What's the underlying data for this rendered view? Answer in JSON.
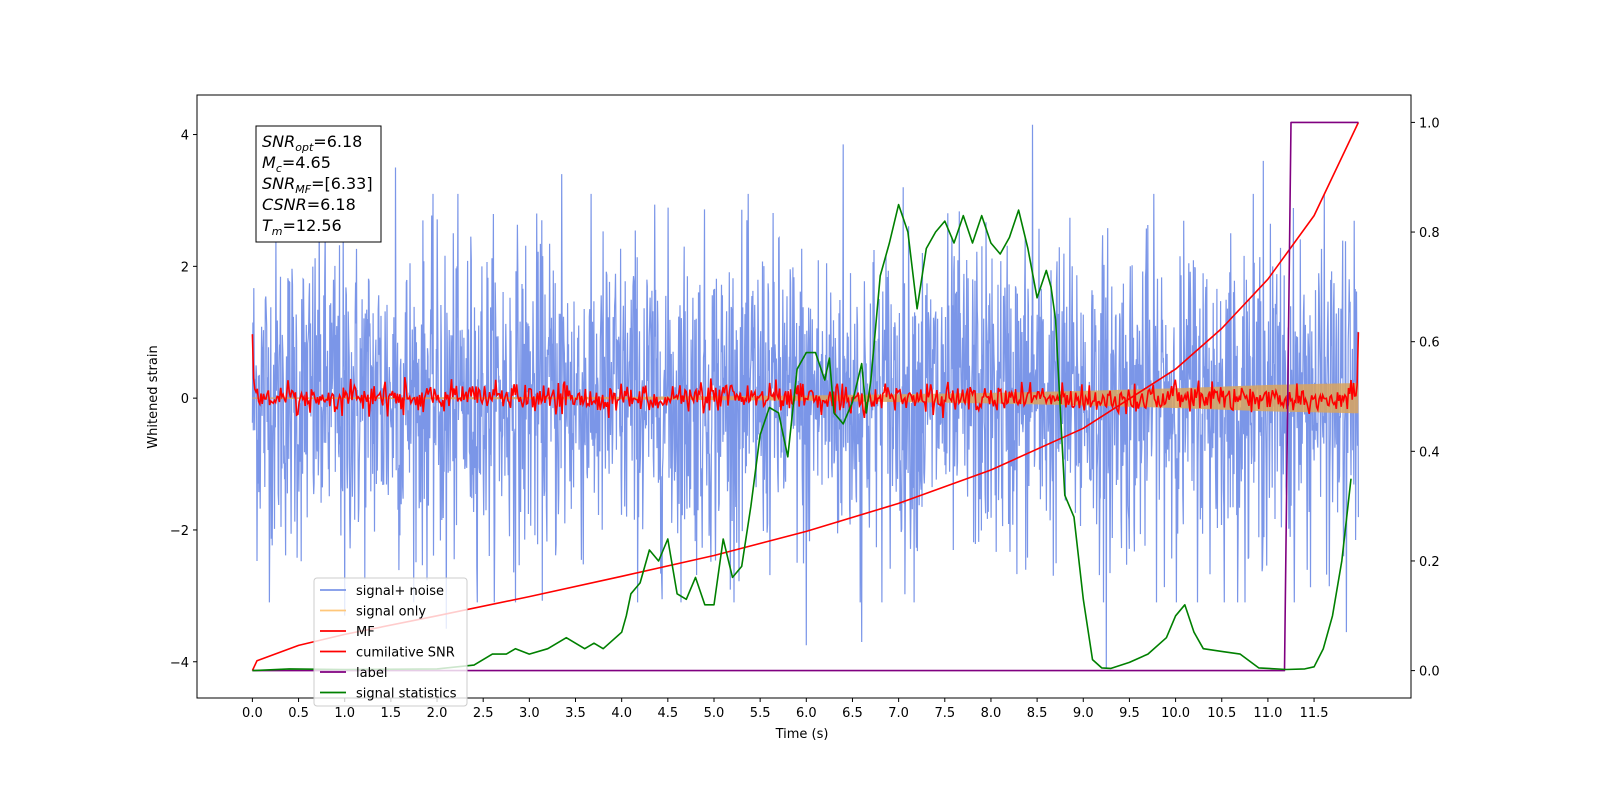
{
  "chart_data": {
    "type": "line",
    "xlabel": "Time (s)",
    "ylabel": "Whitened strain",
    "y2label": "",
    "xlim": [
      -0.6,
      12.55
    ],
    "ylim": [
      -4.55,
      4.6
    ],
    "y2lim": [
      -0.05,
      1.05
    ],
    "x_ticks": [
      0.0,
      0.5,
      1.0,
      1.5,
      2.0,
      2.5,
      3.0,
      3.5,
      4.0,
      4.5,
      5.0,
      5.5,
      6.0,
      6.5,
      7.0,
      7.5,
      8.0,
      8.5,
      9.0,
      9.5,
      10.0,
      10.5,
      11.0,
      11.5
    ],
    "x_tick_labels": [
      "0.0",
      "0.5",
      "1.0",
      "1.5",
      "2.0",
      "2.5",
      "3.0",
      "3.5",
      "4.0",
      "4.5",
      "5.0",
      "5.5",
      "6.0",
      "6.5",
      "7.0",
      "7.5",
      "8.0",
      "8.5",
      "9.0",
      "9.5",
      "10.0",
      "10.5",
      "11.0",
      "11.5"
    ],
    "y_ticks": [
      -4,
      -2,
      0,
      2,
      4
    ],
    "y_tick_labels": [
      "−4",
      "−2",
      "0",
      "2",
      "4"
    ],
    "y2_ticks": [
      0.0,
      0.2,
      0.4,
      0.6,
      0.8,
      1.0
    ],
    "y2_tick_labels": [
      "0.0",
      "0.2",
      "0.4",
      "0.6",
      "0.8",
      "1.0"
    ],
    "grid": false,
    "legend_position": "lower-left",
    "annotation": {
      "lines": [
        {
          "sym": "SNR",
          "sub": "opt",
          "val": "=6.18"
        },
        {
          "sym": "M",
          "sub": "c",
          "val": "=4.65"
        },
        {
          "sym": "SNR",
          "sub": "MF",
          "val": "=[6.33]"
        },
        {
          "sym": "CSNR",
          "sub": "",
          "val": "=6.18"
        },
        {
          "sym": "T",
          "sub": "m",
          "val": "=12.56"
        }
      ]
    },
    "series": [
      {
        "name": "signal+ noise",
        "color": "#7b96e8",
        "axis": "left",
        "kind": "noise",
        "x_range": [
          0.0,
          11.98
        ],
        "amplitude": 1.2,
        "peaks": [
          [
            8.45,
            4.15
          ],
          [
            6.4,
            3.85
          ],
          [
            10.95,
            3.6
          ],
          [
            1.55,
            3.5
          ],
          [
            3.35,
            3.4
          ],
          [
            7.05,
            3.2
          ],
          [
            9.25,
            -4.1
          ],
          [
            6.0,
            -3.75
          ],
          [
            6.6,
            -3.7
          ],
          [
            11.85,
            -3.55
          ],
          [
            2.1,
            -3.5
          ],
          [
            1.0,
            -3.3
          ]
        ]
      },
      {
        "name": "signal only",
        "color": "#d9a45e",
        "axis": "left",
        "kind": "band",
        "x": [
          0,
          4,
          6,
          8,
          9,
          10,
          11,
          11.98
        ],
        "half_width": [
          0.01,
          0.02,
          0.04,
          0.08,
          0.11,
          0.15,
          0.2,
          0.23
        ]
      },
      {
        "name": "MF",
        "color": "#ff0000",
        "axis": "left",
        "kind": "mf",
        "x_range": [
          0.0,
          11.98
        ],
        "start": 0.97,
        "end": 1.0,
        "amplitude": 0.18
      },
      {
        "name": "cumilative SNR",
        "color": "#ff0000",
        "axis": "right",
        "kind": "line",
        "x": [
          0.0,
          0.05,
          0.5,
          1.0,
          2.0,
          3.0,
          4.0,
          5.0,
          6.0,
          7.0,
          8.0,
          9.0,
          10.0,
          10.5,
          11.0,
          11.5,
          11.98
        ],
        "y": [
          0.0,
          0.018,
          0.046,
          0.066,
          0.1,
          0.135,
          0.172,
          0.21,
          0.254,
          0.305,
          0.366,
          0.442,
          0.55,
          0.624,
          0.714,
          0.83,
          1.0
        ]
      },
      {
        "name": "label",
        "color": "#800080",
        "axis": "right",
        "kind": "line",
        "x": [
          0.0,
          11.18,
          11.25,
          11.98
        ],
        "y": [
          0.0,
          0.0,
          1.0,
          1.0
        ]
      },
      {
        "name": "signal statistics",
        "color": "#008000",
        "axis": "right",
        "kind": "line",
        "x": [
          0.0,
          0.4,
          1.0,
          2.0,
          2.4,
          2.6,
          2.75,
          2.85,
          3.0,
          3.2,
          3.4,
          3.5,
          3.6,
          3.7,
          3.8,
          4.0,
          4.05,
          4.1,
          4.2,
          4.3,
          4.4,
          4.5,
          4.6,
          4.7,
          4.8,
          4.9,
          5.0,
          5.1,
          5.2,
          5.3,
          5.4,
          5.5,
          5.6,
          5.7,
          5.8,
          5.9,
          6.0,
          6.1,
          6.2,
          6.25,
          6.3,
          6.4,
          6.5,
          6.6,
          6.65,
          6.7,
          6.8,
          6.9,
          7.0,
          7.1,
          7.2,
          7.3,
          7.4,
          7.5,
          7.6,
          7.7,
          7.8,
          7.9,
          8.0,
          8.1,
          8.2,
          8.3,
          8.4,
          8.5,
          8.6,
          8.65,
          8.7,
          8.8,
          8.9,
          9.0,
          9.1,
          9.2,
          9.3,
          9.5,
          9.7,
          9.9,
          10.0,
          10.1,
          10.2,
          10.3,
          10.5,
          10.7,
          10.9,
          11.2,
          11.4,
          11.5,
          11.6,
          11.7,
          11.8,
          11.9
        ],
        "y": [
          0.0,
          0.003,
          0.002,
          0.003,
          0.01,
          0.03,
          0.03,
          0.04,
          0.03,
          0.04,
          0.06,
          0.05,
          0.04,
          0.05,
          0.04,
          0.07,
          0.1,
          0.14,
          0.16,
          0.22,
          0.2,
          0.24,
          0.14,
          0.13,
          0.17,
          0.12,
          0.12,
          0.24,
          0.17,
          0.19,
          0.3,
          0.43,
          0.48,
          0.47,
          0.39,
          0.55,
          0.58,
          0.58,
          0.53,
          0.57,
          0.47,
          0.45,
          0.49,
          0.56,
          0.47,
          0.53,
          0.72,
          0.78,
          0.85,
          0.8,
          0.66,
          0.77,
          0.8,
          0.82,
          0.78,
          0.83,
          0.78,
          0.83,
          0.78,
          0.76,
          0.79,
          0.84,
          0.77,
          0.68,
          0.73,
          0.7,
          0.64,
          0.32,
          0.28,
          0.13,
          0.02,
          0.005,
          0.004,
          0.015,
          0.03,
          0.06,
          0.1,
          0.12,
          0.07,
          0.04,
          0.035,
          0.03,
          0.005,
          0.002,
          0.003,
          0.007,
          0.04,
          0.1,
          0.2,
          0.35
        ]
      }
    ]
  }
}
